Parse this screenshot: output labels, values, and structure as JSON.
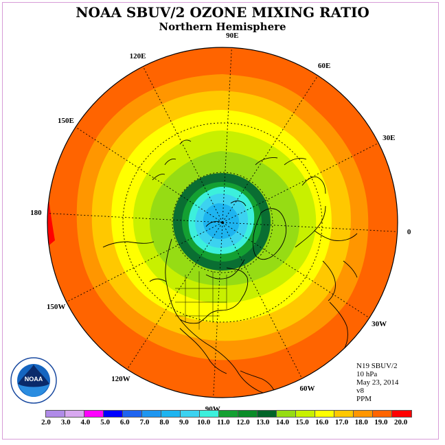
{
  "title": "NOAA SBUV/2 OZONE MIXING RATIO",
  "subtitle": "Northern Hemisphere",
  "longitude_labels": [
    {
      "label": "90E",
      "lon": 90
    },
    {
      "label": "60E",
      "lon": 60
    },
    {
      "label": "30E",
      "lon": 30
    },
    {
      "label": "0",
      "lon": 0
    },
    {
      "label": "30W",
      "lon": -30
    },
    {
      "label": "60W",
      "lon": -60
    },
    {
      "label": "90W",
      "lon": -90
    },
    {
      "label": "120W",
      "lon": -120
    },
    {
      "label": "150W",
      "lon": -150
    },
    {
      "label": "180",
      "lon": 180
    },
    {
      "label": "150E",
      "lon": 150
    },
    {
      "label": "120E",
      "lon": 120
    }
  ],
  "info": {
    "satellite": "N19 SBUV/2",
    "level": "10 hPa",
    "date": "May 23, 2014",
    "version": "v8",
    "units": "PPM"
  },
  "logo_text": "NOAA",
  "colorbar": {
    "labels": [
      "2.0",
      "3.0",
      "4.0",
      "5.0",
      "6.0",
      "7.0",
      "8.0",
      "9.0",
      "10.0",
      "11.0",
      "12.0",
      "13.0",
      "14.0",
      "15.0",
      "16.0",
      "17.0",
      "18.0",
      "19.0",
      "20.0"
    ],
    "colors": [
      "#b08be8",
      "#d8a8f0",
      "#ff00ff",
      "#0000ff",
      "#1e64f0",
      "#1e96f0",
      "#1eb4f0",
      "#3cd2f0",
      "#3cf0dc",
      "#14a032",
      "#0a8c28",
      "#006428",
      "#96dc14",
      "#c8f000",
      "#ffff00",
      "#ffc800",
      "#ff9600",
      "#ff6400",
      "#ff0000",
      "#8b5a3c"
    ]
  },
  "map": {
    "projection": "polar stereographic, north pole",
    "latitude_circles": [
      0,
      30,
      60
    ],
    "field_levels_ppm": [
      7.0,
      8.0,
      9.0,
      10.0,
      11.0,
      12.0,
      13.0,
      14.0,
      15.0,
      16.0,
      17.0,
      18.0,
      19.0
    ],
    "field_colors": [
      "#1e96f0",
      "#1eb4f0",
      "#3cd2f0",
      "#3cf0dc",
      "#14a032",
      "#0a6e32",
      "#96dc14",
      "#c8f000",
      "#ffff00",
      "#ffc800",
      "#ff9600",
      "#ff6400",
      "#ff0000"
    ]
  }
}
